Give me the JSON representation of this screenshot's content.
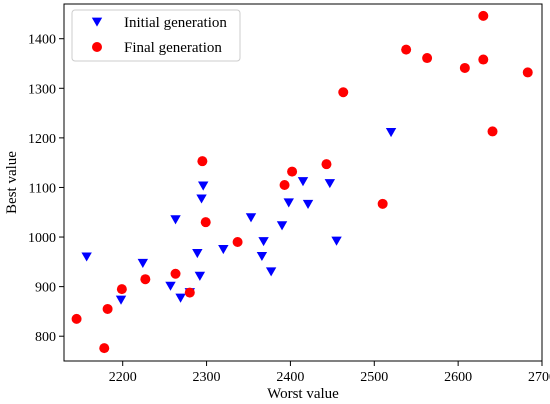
{
  "chart_data": {
    "type": "scatter",
    "title": "",
    "xlabel": "Worst value",
    "ylabel": "Best value",
    "xlim": [
      2130,
      2700
    ],
    "ylim": [
      750,
      1470
    ],
    "xticks": [
      2200,
      2300,
      2400,
      2500,
      2600,
      2700
    ],
    "yticks": [
      800,
      900,
      1000,
      1100,
      1200,
      1300,
      1400
    ],
    "grid": false,
    "legend_position": "top-left",
    "series": [
      {
        "name": "Initial generation",
        "marker": "triangle-down",
        "color": "#0000ff",
        "points": [
          [
            2157,
            960
          ],
          [
            2198,
            873
          ],
          [
            2224,
            947
          ],
          [
            2257,
            901
          ],
          [
            2263,
            1035
          ],
          [
            2269,
            877
          ],
          [
            2280,
            888
          ],
          [
            2289,
            967
          ],
          [
            2292,
            921
          ],
          [
            2294,
            1077
          ],
          [
            2296,
            1103
          ],
          [
            2320,
            975
          ],
          [
            2353,
            1039
          ],
          [
            2366,
            961
          ],
          [
            2368,
            991
          ],
          [
            2377,
            930
          ],
          [
            2390,
            1023
          ],
          [
            2398,
            1069
          ],
          [
            2415,
            1112
          ],
          [
            2421,
            1066
          ],
          [
            2447,
            1108
          ],
          [
            2455,
            992
          ],
          [
            2520,
            1211
          ]
        ]
      },
      {
        "name": "Final generation",
        "color": "#ff0000",
        "marker": "circle",
        "points": [
          [
            2145,
            835
          ],
          [
            2178,
            776
          ],
          [
            2182,
            855
          ],
          [
            2199,
            895
          ],
          [
            2227,
            915
          ],
          [
            2263,
            926
          ],
          [
            2280,
            888
          ],
          [
            2295,
            1153
          ],
          [
            2299,
            1030
          ],
          [
            2337,
            990
          ],
          [
            2393,
            1105
          ],
          [
            2402,
            1132
          ],
          [
            2443,
            1147
          ],
          [
            2463,
            1292
          ],
          [
            2510,
            1067
          ],
          [
            2538,
            1378
          ],
          [
            2563,
            1361
          ],
          [
            2608,
            1341
          ],
          [
            2630,
            1446
          ],
          [
            2630,
            1358
          ],
          [
            2641,
            1213
          ],
          [
            2683,
            1332
          ]
        ]
      }
    ]
  }
}
